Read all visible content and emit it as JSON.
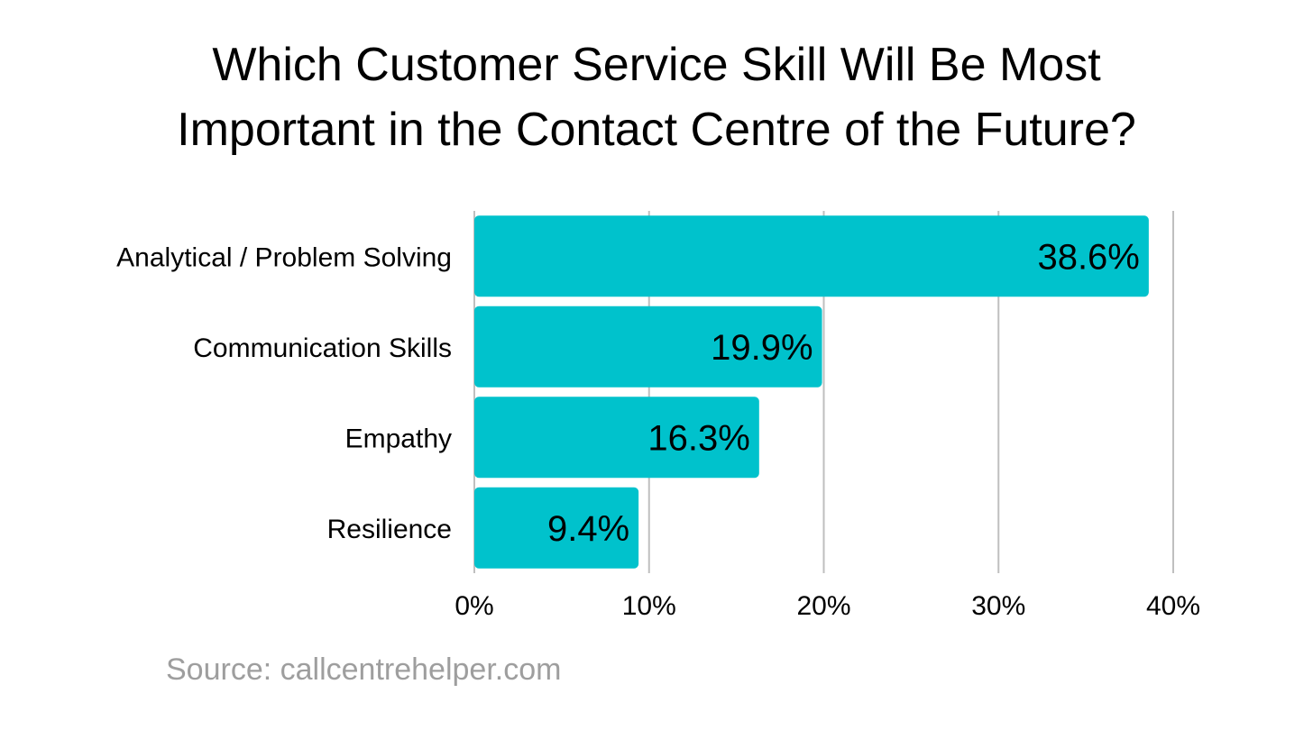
{
  "title_lines": [
    "Which Customer Service Skill Will Be Most",
    "Important in the Contact Centre of the Future?"
  ],
  "source": "Source: callcentrehelper.com",
  "colors": {
    "bar": "#00c2cc",
    "grid": "#bfbfbf",
    "text": "#000000",
    "source": "#9e9e9e"
  },
  "chart_data": {
    "type": "bar",
    "orientation": "horizontal",
    "categories": [
      "Analytical / Problem Solving",
      "Communication Skills",
      "Empathy",
      "Resilience"
    ],
    "values": [
      38.6,
      19.9,
      16.3,
      9.4
    ],
    "value_labels": [
      "38.6%",
      "19.9%",
      "16.3%",
      "9.4%"
    ],
    "xlim": [
      0,
      40
    ],
    "xticks": [
      0,
      10,
      20,
      30,
      40
    ],
    "xtick_labels": [
      "0%",
      "10%",
      "20%",
      "30%",
      "40%"
    ],
    "grid": true,
    "legend": "none"
  }
}
